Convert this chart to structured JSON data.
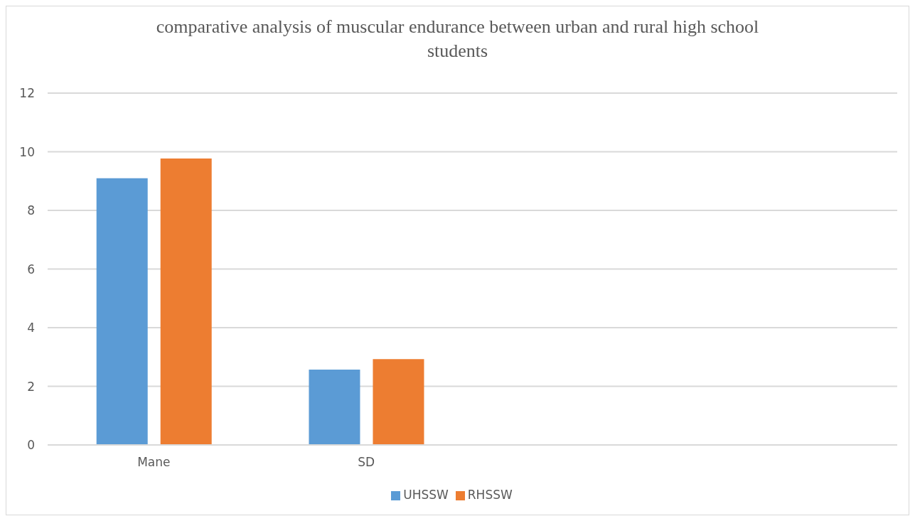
{
  "chart_data": {
    "type": "bar",
    "title": "comparative analysis of muscular endurance between urban and rural high school students",
    "categories": [
      "Mane",
      "SD",
      null,
      null
    ],
    "series": [
      {
        "name": "UHSSW",
        "color": "#5b9bd5",
        "values": [
          9.1,
          2.57,
          null,
          null
        ]
      },
      {
        "name": "RHSSW",
        "color": "#ed7d31",
        "values": [
          9.77,
          2.93,
          null,
          null
        ]
      }
    ],
    "ylim": [
      0,
      12
    ],
    "yticks": [
      0,
      2,
      4,
      6,
      8,
      10,
      12
    ],
    "grid": "y",
    "legend": "bottom"
  }
}
